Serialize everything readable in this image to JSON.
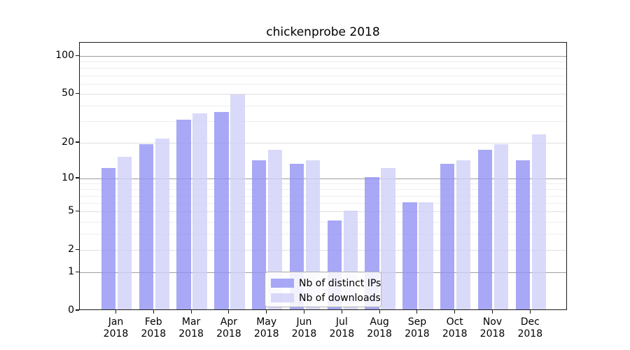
{
  "chart_data": {
    "type": "bar",
    "title": "chickenprobe 2018",
    "categories": [
      "Jan",
      "Feb",
      "Mar",
      "Apr",
      "May",
      "Jun",
      "Jul",
      "Aug",
      "Sep",
      "Oct",
      "Nov",
      "Dec"
    ],
    "year": "2018",
    "series": [
      {
        "name": "Nb of distinct IPs",
        "color": "#9292f4",
        "alpha": 0.8,
        "values": [
          12,
          19,
          30,
          35,
          14,
          13,
          4,
          10,
          6,
          13,
          17,
          14
        ]
      },
      {
        "name": "Nb of downloads",
        "color": "#cfcff7",
        "alpha": 0.8,
        "values": [
          15,
          21,
          34,
          48,
          17,
          14,
          5,
          12,
          6,
          14,
          19,
          23
        ]
      }
    ],
    "xlabel": "",
    "ylabel": "",
    "yscale": "log1p",
    "ylim": [
      0,
      128
    ],
    "yticks_labeled": [
      0,
      1,
      2,
      5,
      10,
      20,
      50,
      100
    ],
    "gridlines": {
      "decade_values": [
        1,
        10,
        100
      ],
      "decade_color": "#9e9e9e",
      "major_values": [
        2,
        5,
        20,
        50
      ],
      "major_color": "#e0e0e0",
      "minor_values": [
        3,
        4,
        6,
        7,
        8,
        9,
        30,
        40,
        60,
        70,
        80,
        90
      ],
      "minor_color": "#eeeeee"
    },
    "legend": {
      "position": "lower center",
      "entries": [
        "Nb of distinct IPs",
        "Nb of downloads"
      ]
    },
    "grid": true
  }
}
